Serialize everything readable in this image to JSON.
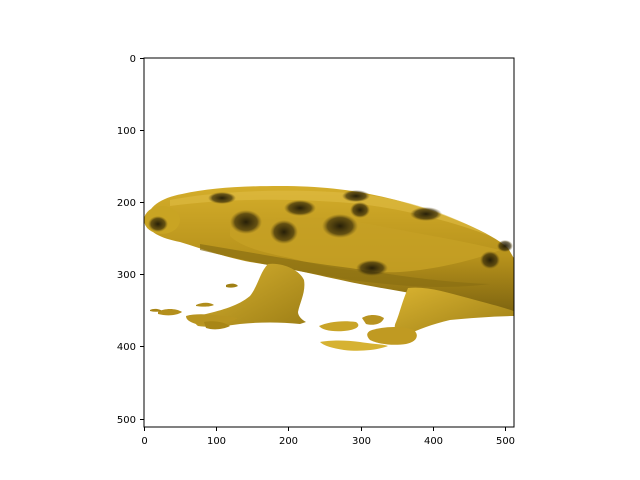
{
  "figure": {
    "x_ticks": [
      "0",
      "100",
      "200",
      "300",
      "400",
      "500"
    ],
    "y_ticks": [
      "0",
      "100",
      "200",
      "300",
      "400",
      "500"
    ],
    "x_range": [
      0,
      511
    ],
    "y_range": [
      511,
      0
    ],
    "image_subject": "volume rendering of a yellow frog-like creature with dark blotches",
    "colors": {
      "body": "#c8a020",
      "body_shade": "#9a7c14",
      "spots": "#2a2208"
    }
  }
}
